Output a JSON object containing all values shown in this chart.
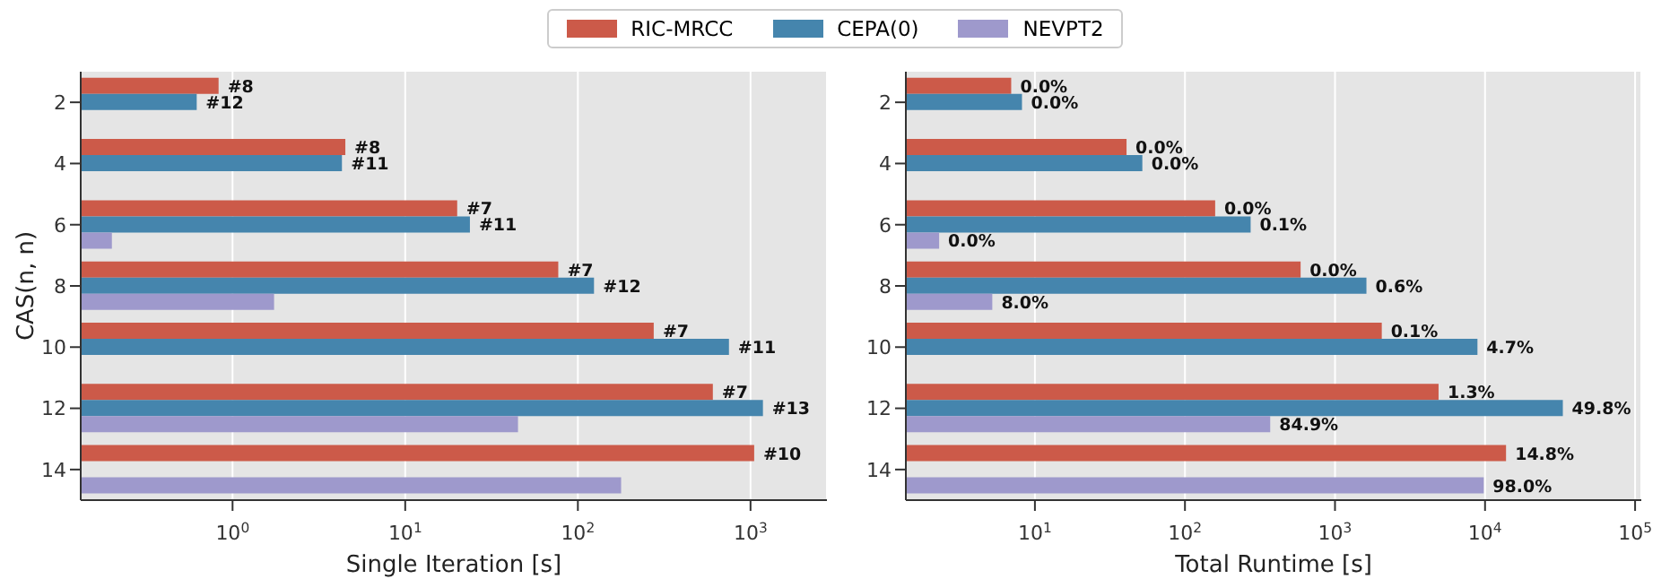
{
  "chart_data": [
    {
      "type": "bar",
      "orientation": "horizontal",
      "log": "x",
      "grid": "x",
      "legend": "top",
      "ylabel": "CAS(n, n)",
      "xlabel": "Single Iteration [s]",
      "categories": [
        "2",
        "4",
        "6",
        "8",
        "10",
        "12",
        "14"
      ],
      "xlim": [
        0.132,
        2770
      ],
      "xticks": [
        {
          "value": 1,
          "label": "10$^{0}$"
        },
        {
          "value": 10,
          "label": "10$^{1}$"
        },
        {
          "value": 100,
          "label": "10$^{2}$"
        },
        {
          "value": 1000,
          "label": "10$^{3}$"
        }
      ],
      "series": [
        {
          "name": "RIC-MRCC",
          "color": "#cc5a49",
          "values": [
            0.83,
            4.5,
            20,
            77,
            275,
            605,
            1050
          ]
        },
        {
          "name": "CEPA(0)",
          "color": "#4585ad",
          "values": [
            0.62,
            4.3,
            23.7,
            124,
            750,
            1180,
            null
          ]
        },
        {
          "name": "NEVPT2",
          "color": "#9e99cc",
          "values": [
            null,
            null,
            0.2,
            1.74,
            null,
            45,
            178
          ]
        }
      ],
      "annotations": [
        {
          "text": "#8",
          "x": 0.83,
          "y": "2"
        },
        {
          "text": "#12",
          "x": 0.62,
          "y": "2"
        },
        {
          "text": "#8",
          "x": 4.5,
          "y": "4"
        },
        {
          "text": "#11",
          "x": 4.3,
          "y": "4"
        },
        {
          "text": "#7",
          "x": 20,
          "y": "6"
        },
        {
          "text": "#11",
          "x": 23.7,
          "y": "6"
        },
        {
          "text": "#7",
          "x": 77,
          "y": "8"
        },
        {
          "text": "#12",
          "x": 124,
          "y": "8"
        },
        {
          "text": "#7",
          "x": 275,
          "y": "10"
        },
        {
          "text": "#11",
          "x": 750,
          "y": "10"
        },
        {
          "text": "#7",
          "x": 605,
          "y": "12"
        },
        {
          "text": "#13",
          "x": 1180,
          "y": "12"
        },
        {
          "text": "#10",
          "x": 1050,
          "y": "14"
        }
      ]
    },
    {
      "type": "bar",
      "orientation": "horizontal",
      "log": "x",
      "grid": "x",
      "xlabel": "Total Runtime [s]",
      "categories": [
        "2",
        "4",
        "6",
        "8",
        "10",
        "12",
        "14"
      ],
      "xlim": [
        1.38,
        110000
      ],
      "xticks": [
        {
          "value": 10,
          "label": "10$^{1}$"
        },
        {
          "value": 100,
          "label": "10$^{2}$"
        },
        {
          "value": 1000,
          "label": "10$^{3}$"
        },
        {
          "value": 10000,
          "label": "10$^{4}$"
        },
        {
          "value": 100000,
          "label": "10$^{5}$"
        }
      ],
      "series": [
        {
          "color": "#cc5a49",
          "values": [
            6.95,
            40.8,
            159,
            590,
            2050,
            4900,
            13800
          ]
        },
        {
          "color": "#4585ad",
          "values": [
            8.2,
            52,
            274,
            1620,
            8900,
            33000,
            null
          ]
        },
        {
          "color": "#9e99cc",
          "values": [
            null,
            null,
            2.3,
            5.2,
            null,
            370,
            9800
          ]
        }
      ],
      "annotations": [
        {
          "text": "0.0%",
          "x": 6.95,
          "y": "2"
        },
        {
          "text": "0.0%",
          "x": 8.2,
          "y": "2"
        },
        {
          "text": "0.0%",
          "x": 40.8,
          "y": "4"
        },
        {
          "text": "0.0%",
          "x": 52,
          "y": "4"
        },
        {
          "text": "0.0%",
          "x": 159,
          "y": "6"
        },
        {
          "text": "0.1%",
          "x": 274,
          "y": "6"
        },
        {
          "text": "0.0%",
          "x": 2.3,
          "y": "6"
        },
        {
          "text": "0.0%",
          "x": 590,
          "y": "8"
        },
        {
          "text": "0.6%",
          "x": 1620,
          "y": "8"
        },
        {
          "text": "8.0%",
          "x": 5.2,
          "y": "8"
        },
        {
          "text": "0.1%",
          "x": 2050,
          "y": "10"
        },
        {
          "text": "4.7%",
          "x": 8900,
          "y": "10"
        },
        {
          "text": "1.3%",
          "x": 4900,
          "y": "12"
        },
        {
          "text": "49.8%",
          "x": 33000,
          "y": "12"
        },
        {
          "text": "84.9%",
          "x": 370,
          "y": "12"
        },
        {
          "text": "14.8%",
          "x": 13800,
          "y": "14"
        },
        {
          "text": "98.0%",
          "x": 9800,
          "y": "14"
        }
      ]
    }
  ]
}
